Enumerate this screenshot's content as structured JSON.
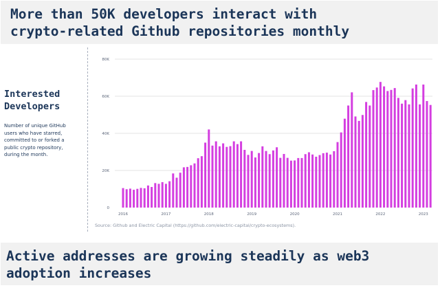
{
  "header": {
    "title_lines": [
      "More than 50K developers interact with",
      "crypto-related Github repositories monthly"
    ]
  },
  "sidebar": {
    "title_lines": [
      "Interested",
      "Developers"
    ],
    "description_lines": [
      "Number of unique GitHub",
      "users who have starred,",
      "committed to or forked a",
      "public crypto repository,",
      "during the month."
    ]
  },
  "footer": {
    "title_lines": [
      "Active addresses are growing steadily as web3",
      "adoption increases"
    ]
  },
  "source": "Source: Github and Electric Capital (https://github.com/electric-capital/crypto-ecosystems).",
  "colors": {
    "bar": "#d43ee0",
    "text": "#1b3558",
    "grid": "#e3e3e3",
    "banner": "#f1f1f1"
  },
  "chart_data": {
    "type": "bar",
    "title": "Interested Developers",
    "xlabel": "",
    "ylabel": "",
    "ylim": [
      0,
      80000
    ],
    "y_ticks": [
      0,
      20000,
      40000,
      60000,
      80000
    ],
    "y_tick_labels": [
      "0",
      "20K",
      "40K",
      "60K",
      "80K"
    ],
    "x_tick_labels": [
      "2016",
      "2017",
      "2018",
      "2019",
      "2020",
      "2021",
      "2022",
      "2023"
    ],
    "grid": true,
    "start_month": "2016-01",
    "end_month": "2023-03",
    "values": [
      10500,
      9900,
      10200,
      9600,
      10100,
      10600,
      10400,
      11900,
      11100,
      13200,
      12800,
      13700,
      12800,
      14200,
      18400,
      16100,
      18800,
      21700,
      21900,
      22800,
      23800,
      26600,
      27700,
      35000,
      42100,
      33400,
      35700,
      33000,
      34600,
      32700,
      33100,
      35700,
      34200,
      35700,
      31100,
      28400,
      30500,
      27000,
      29400,
      33000,
      30500,
      28800,
      30800,
      32500,
      26800,
      28900,
      26800,
      25300,
      25400,
      26700,
      26700,
      28800,
      29800,
      28600,
      27400,
      28300,
      29300,
      29600,
      28600,
      30400,
      35300,
      40500,
      47900,
      55000,
      62100,
      49100,
      46700,
      49900,
      56900,
      55000,
      63300,
      64700,
      67700,
      65300,
      62800,
      63400,
      64400,
      59100,
      56000,
      57900,
      55600,
      64200,
      66300,
      55600,
      66300,
      57400,
      55300
    ]
  }
}
